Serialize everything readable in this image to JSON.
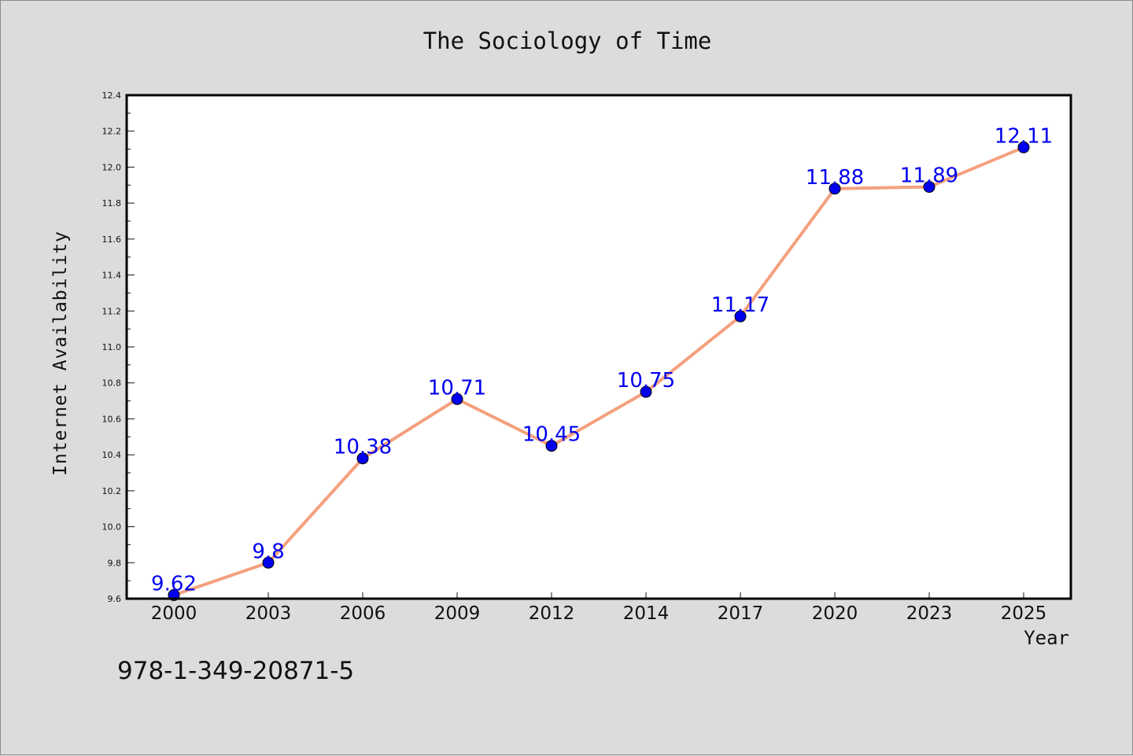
{
  "chart_data": {
    "type": "line",
    "title": "The Sociology of Time",
    "xlabel": "Year",
    "ylabel": "Internet Availability",
    "categories": [
      "2000",
      "2003",
      "2006",
      "2009",
      "2012",
      "2014",
      "2017",
      "2020",
      "2023",
      "2025"
    ],
    "series": [
      {
        "values": [
          9.62,
          9.8,
          10.38,
          10.71,
          10.45,
          10.75,
          11.17,
          11.88,
          11.89,
          12.11
        ],
        "labels": [
          "9.62",
          "9.8",
          "10.38",
          "10.71",
          "10.45",
          "10.75",
          "11.17",
          "11.88",
          "11.89",
          "12.11"
        ]
      }
    ],
    "ylim": [
      9.6,
      12.4
    ],
    "yticks": [
      "9.6",
      "9.8",
      "10.0",
      "10.2",
      "10.4",
      "10.6",
      "10.8",
      "11.0",
      "11.2",
      "11.4",
      "11.6",
      "11.8",
      "12.0",
      "12.2",
      "12.4"
    ],
    "grid": false,
    "colors": {
      "line": "#f4a07e",
      "marker": "#0000ee",
      "label": "#0000ee",
      "background": "#dcdcdc",
      "plot_area": "#ffffff"
    }
  },
  "footer": {
    "isbn": "978-1-349-20871-5"
  }
}
